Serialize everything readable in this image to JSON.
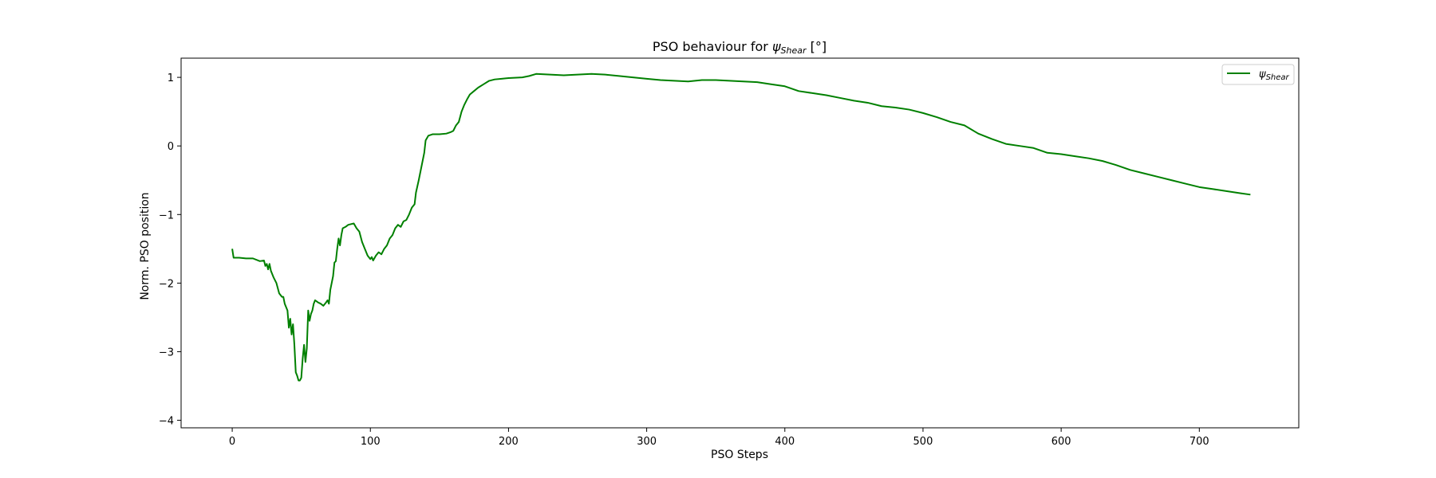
{
  "chart_data": {
    "type": "line",
    "title_prefix": "PSO behaviour for ",
    "title_symbol": "ψ",
    "title_subscript": "Shear",
    "title_suffix": " [°]",
    "xlabel": "PSO Steps",
    "ylabel": "Norm. PSO position",
    "xlim": [
      -37,
      772
    ],
    "ylim": [
      -4.11,
      1.28
    ],
    "xticks": [
      0,
      100,
      200,
      300,
      400,
      500,
      600,
      700
    ],
    "yticks": [
      -4,
      -3,
      -2,
      -1,
      0,
      1
    ],
    "ytick_labels": [
      "−4",
      "−3",
      "−2",
      "−1",
      "0",
      "1"
    ],
    "grid": false,
    "legend_position": "top-right",
    "series": [
      {
        "name_symbol": "ψ",
        "name_subscript": "Shear",
        "color": "#008000",
        "points": [
          [
            0,
            -1.5
          ],
          [
            1,
            -1.63
          ],
          [
            5,
            -1.63
          ],
          [
            10,
            -1.64
          ],
          [
            15,
            -1.64
          ],
          [
            20,
            -1.68
          ],
          [
            23,
            -1.67
          ],
          [
            24,
            -1.75
          ],
          [
            25,
            -1.72
          ],
          [
            26,
            -1.8
          ],
          [
            27,
            -1.72
          ],
          [
            28,
            -1.82
          ],
          [
            30,
            -1.92
          ],
          [
            32,
            -2.0
          ],
          [
            34,
            -2.15
          ],
          [
            36,
            -2.2
          ],
          [
            37,
            -2.2
          ],
          [
            38,
            -2.3
          ],
          [
            39,
            -2.35
          ],
          [
            40,
            -2.4
          ],
          [
            41,
            -2.65
          ],
          [
            42,
            -2.52
          ],
          [
            43,
            -2.75
          ],
          [
            44,
            -2.6
          ],
          [
            45,
            -2.9
          ],
          [
            46,
            -3.3
          ],
          [
            47,
            -3.35
          ],
          [
            48,
            -3.42
          ],
          [
            49,
            -3.42
          ],
          [
            50,
            -3.38
          ],
          [
            51,
            -3.1
          ],
          [
            52,
            -2.9
          ],
          [
            53,
            -3.15
          ],
          [
            54,
            -2.95
          ],
          [
            55,
            -2.4
          ],
          [
            56,
            -2.55
          ],
          [
            57,
            -2.45
          ],
          [
            58,
            -2.4
          ],
          [
            59,
            -2.3
          ],
          [
            60,
            -2.25
          ],
          [
            62,
            -2.28
          ],
          [
            64,
            -2.3
          ],
          [
            66,
            -2.33
          ],
          [
            68,
            -2.28
          ],
          [
            69,
            -2.25
          ],
          [
            70,
            -2.3
          ],
          [
            71,
            -2.1
          ],
          [
            72,
            -2.0
          ],
          [
            73,
            -1.9
          ],
          [
            74,
            -1.7
          ],
          [
            75,
            -1.68
          ],
          [
            76,
            -1.5
          ],
          [
            77,
            -1.35
          ],
          [
            78,
            -1.45
          ],
          [
            79,
            -1.3
          ],
          [
            80,
            -1.2
          ],
          [
            82,
            -1.18
          ],
          [
            84,
            -1.15
          ],
          [
            86,
            -1.14
          ],
          [
            88,
            -1.13
          ],
          [
            90,
            -1.2
          ],
          [
            92,
            -1.25
          ],
          [
            94,
            -1.4
          ],
          [
            96,
            -1.5
          ],
          [
            98,
            -1.6
          ],
          [
            100,
            -1.65
          ],
          [
            101,
            -1.62
          ],
          [
            102,
            -1.67
          ],
          [
            104,
            -1.6
          ],
          [
            106,
            -1.55
          ],
          [
            108,
            -1.58
          ],
          [
            110,
            -1.5
          ],
          [
            112,
            -1.45
          ],
          [
            114,
            -1.35
          ],
          [
            116,
            -1.3
          ],
          [
            118,
            -1.2
          ],
          [
            120,
            -1.15
          ],
          [
            122,
            -1.18
          ],
          [
            124,
            -1.1
          ],
          [
            126,
            -1.08
          ],
          [
            128,
            -1.0
          ],
          [
            130,
            -0.9
          ],
          [
            132,
            -0.85
          ],
          [
            133,
            -0.68
          ],
          [
            135,
            -0.5
          ],
          [
            137,
            -0.3
          ],
          [
            139,
            -0.1
          ],
          [
            140,
            0.08
          ],
          [
            142,
            0.15
          ],
          [
            145,
            0.17
          ],
          [
            150,
            0.17
          ],
          [
            155,
            0.18
          ],
          [
            158,
            0.2
          ],
          [
            160,
            0.22
          ],
          [
            162,
            0.3
          ],
          [
            164,
            0.35
          ],
          [
            166,
            0.5
          ],
          [
            168,
            0.6
          ],
          [
            170,
            0.68
          ],
          [
            172,
            0.75
          ],
          [
            175,
            0.8
          ],
          [
            178,
            0.85
          ],
          [
            182,
            0.9
          ],
          [
            186,
            0.95
          ],
          [
            190,
            0.97
          ],
          [
            195,
            0.98
          ],
          [
            200,
            0.99
          ],
          [
            210,
            1.0
          ],
          [
            215,
            1.02
          ],
          [
            220,
            1.05
          ],
          [
            230,
            1.04
          ],
          [
            240,
            1.03
          ],
          [
            250,
            1.04
          ],
          [
            260,
            1.05
          ],
          [
            270,
            1.04
          ],
          [
            280,
            1.02
          ],
          [
            290,
            1.0
          ],
          [
            300,
            0.98
          ],
          [
            310,
            0.96
          ],
          [
            320,
            0.95
          ],
          [
            330,
            0.94
          ],
          [
            340,
            0.96
          ],
          [
            350,
            0.96
          ],
          [
            360,
            0.95
          ],
          [
            370,
            0.94
          ],
          [
            380,
            0.93
          ],
          [
            390,
            0.9
          ],
          [
            400,
            0.87
          ],
          [
            410,
            0.8
          ],
          [
            420,
            0.77
          ],
          [
            430,
            0.74
          ],
          [
            440,
            0.7
          ],
          [
            450,
            0.66
          ],
          [
            460,
            0.63
          ],
          [
            470,
            0.58
          ],
          [
            480,
            0.56
          ],
          [
            490,
            0.53
          ],
          [
            500,
            0.48
          ],
          [
            510,
            0.42
          ],
          [
            520,
            0.35
          ],
          [
            530,
            0.3
          ],
          [
            540,
            0.18
          ],
          [
            550,
            0.1
          ],
          [
            560,
            0.03
          ],
          [
            570,
            0.0
          ],
          [
            580,
            -0.03
          ],
          [
            590,
            -0.1
          ],
          [
            600,
            -0.12
          ],
          [
            610,
            -0.15
          ],
          [
            620,
            -0.18
          ],
          [
            630,
            -0.22
          ],
          [
            640,
            -0.28
          ],
          [
            650,
            -0.35
          ],
          [
            660,
            -0.4
          ],
          [
            670,
            -0.45
          ],
          [
            680,
            -0.5
          ],
          [
            690,
            -0.55
          ],
          [
            700,
            -0.6
          ],
          [
            710,
            -0.63
          ],
          [
            720,
            -0.66
          ],
          [
            730,
            -0.69
          ],
          [
            737,
            -0.71
          ]
        ]
      }
    ]
  }
}
